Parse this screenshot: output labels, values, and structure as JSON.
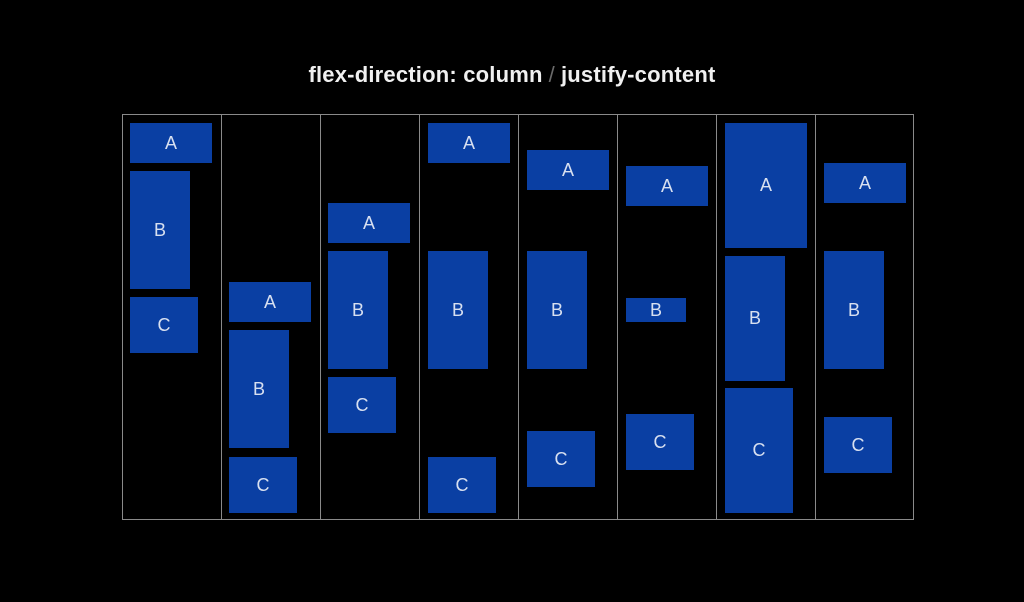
{
  "title": {
    "part1": "flex-direction: column",
    "separator": "/",
    "part2": "justify-content"
  },
  "box_labels": {
    "a": "A",
    "b": "B",
    "c": "C"
  },
  "colors": {
    "box": "#0a3fa3",
    "border": "#8a8a8a",
    "background": "#000000"
  }
}
